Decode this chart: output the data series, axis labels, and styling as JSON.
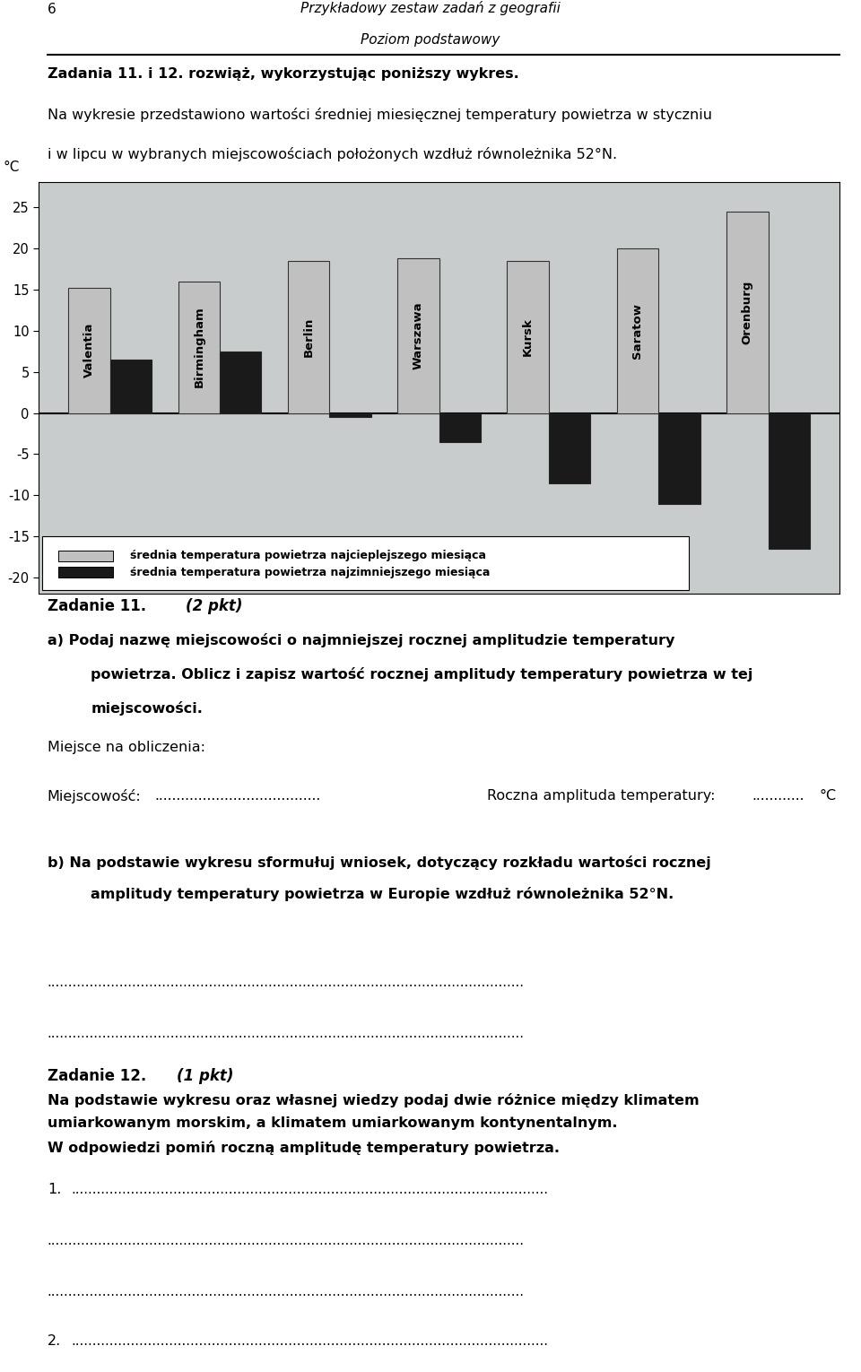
{
  "header_number": "6",
  "header_title": "Przykładowy zestaw zadań z geografii",
  "header_subtitle": "Poziom podstawowy",
  "task_intro_bold": "Zadania 11. i 12. rozwiąż, wykorzystując poniższy wykres.",
  "task_intro_normal1": "Na wykresie przedstawiono wartości średniej miesięcznej temperatury powietrza w styczniu",
  "task_intro_normal2": "i w lipcu w wybranych miejscowościach położonych wzdłuż równoleżnika 52°N.",
  "cities": [
    "Valentia",
    "Birmingham",
    "Berlin",
    "Warszawa",
    "Kursk",
    "Saratow",
    "Orenburg"
  ],
  "city_display": [
    "Valentia",
    "Birmingham",
    "Berlin",
    "Warszawa",
    "Kursk",
    "Saratow",
    "Orenburg"
  ],
  "july_temps": [
    15.2,
    16.0,
    18.5,
    18.8,
    18.5,
    20.0,
    24.5
  ],
  "jan_temps": [
    6.5,
    7.5,
    -0.5,
    -3.5,
    -8.5,
    -11.0,
    -16.5
  ],
  "ylabel": "°C",
  "ylim_min": -22,
  "ylim_max": 28,
  "yticks": [
    -20,
    -15,
    -10,
    -5,
    0,
    5,
    10,
    15,
    20,
    25
  ],
  "bar_width": 0.38,
  "warm_color": "#c0c0c0",
  "cold_color": "#1a1a1a",
  "map_bg_light": "#c8cccc",
  "map_bg_dark": "#a0a8a8",
  "legend_warm": "średnia temperatura powietrza najcieplejszego miesiąca",
  "legend_cold": "średnia temperatura powietrza najzimniejszego miesiąca",
  "task11_label": "Zadanie 11.",
  "task11_pts": "(2 pkt)",
  "task11a_l1": "a) Podaj nazwę miejscowości o najmniejszej rocznej amplitudzie temperatury",
  "task11a_l2": "powietrza. Oblicz i zapisz wartość rocznej amplitudy temperatury powietrza w tej",
  "task11a_l3": "miejscowości.",
  "miejsce_label": "Miejsce na obliczenia:",
  "miejscowosc_label": "Miejscowość:",
  "roczna_label": "Roczna amplituda temperatury:",
  "stopnie_label": "°C",
  "task11b_l1": "b) Na podstawie wykresu sformułuj wniosek, dotyczący rozkładu wartości rocznej",
  "task11b_l2": "amplitudy temperatury powietrza w Europie wzdłuż równoleżnika 52°N.",
  "task12_label": "Zadanie 12.",
  "task12_pts": "(1 pkt)",
  "task12_l1": "Na podstawie wykresu oraz własnej wiedzy podaj dwie różnice między klimatem",
  "task12_l2": "umiarkowanym morskim, a klimatem umiarkowanym kontynentalnym.",
  "task12_l3": "W odpowiedzi pomiń roczną amplitudę temperatury powietrza.",
  "page_width": 9.6,
  "page_height": 15.3,
  "dpi": 100
}
